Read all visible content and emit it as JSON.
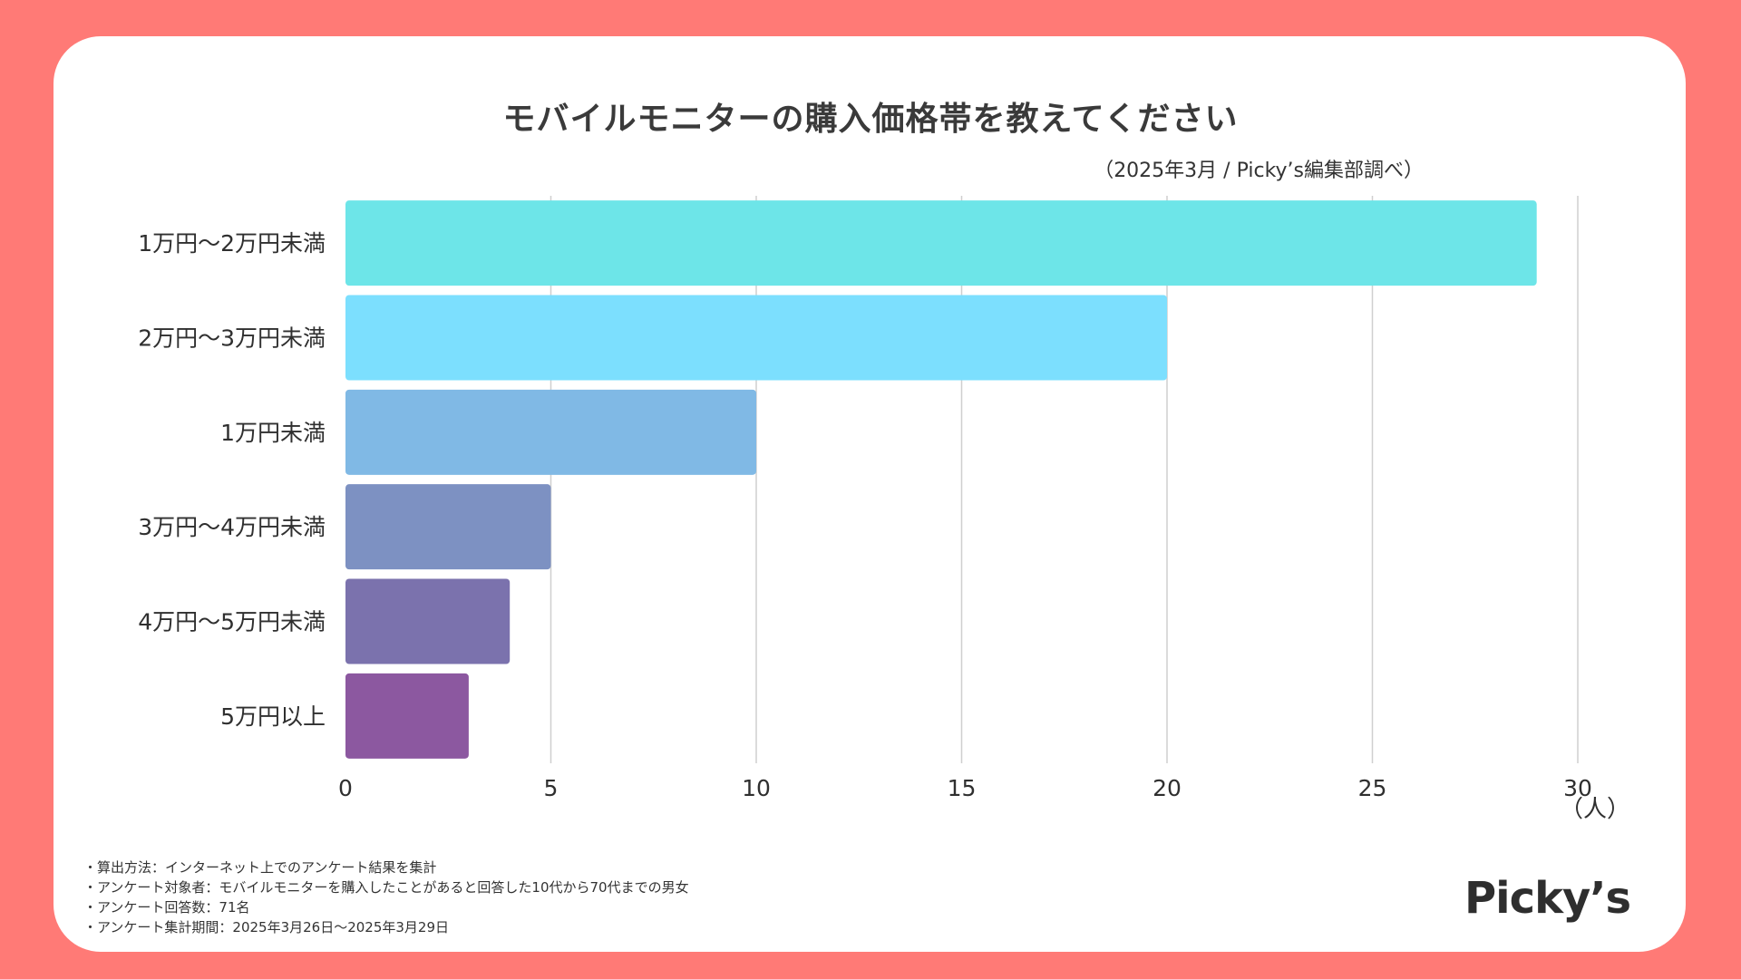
{
  "chart_data": {
    "type": "bar",
    "orientation": "horizontal",
    "title": "モバイルモニターの購入価格帯を教えてください",
    "subtitle": "（2025年3月 / Picky’s編集部調べ）",
    "categories": [
      "1万円〜2万円未満",
      "2万円〜3万円未満",
      "1万円未満",
      "3万円〜4万円未満",
      "4万円〜5万円未満",
      "5万円以上"
    ],
    "values": [
      29,
      20,
      10,
      5,
      4,
      3
    ],
    "colors": [
      "#6de5e8",
      "#7cdffe",
      "#80b9e5",
      "#7d91c2",
      "#7b72ad",
      "#8c58a0"
    ],
    "xlim": [
      0,
      30
    ],
    "xticks": [
      0,
      5,
      10,
      15,
      20,
      25,
      30
    ],
    "xlabel": "（人）",
    "ylabel": "",
    "grid": true
  },
  "notes": [
    "・算出方法：インターネット上でのアンケート結果を集計",
    "・アンケート対象者：モバイルモニターを購入したことがあると回答した10代から70代までの男女",
    "・アンケート回答数：71名",
    "・アンケート集計期間：2025年3月26日〜2025年3月29日"
  ],
  "logo_text": "Picky’s",
  "colors": {
    "background": "#ff7a76",
    "card": "#ffffff",
    "grid": "#cfcfcf",
    "text": "#2f2f2f"
  }
}
